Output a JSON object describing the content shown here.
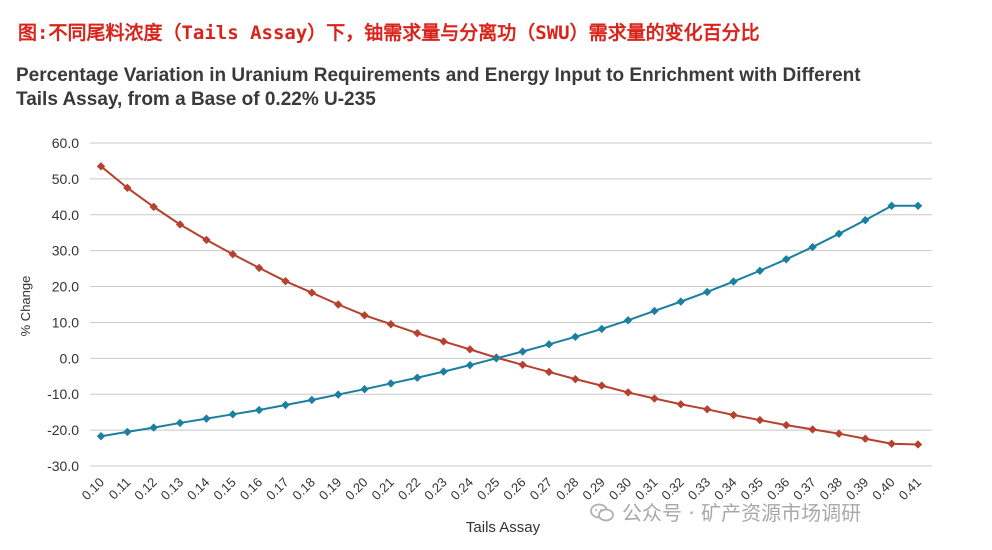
{
  "caption": "图:不同尾料浓度（Tails Assay）下，铀需求量与分离功（SWU）需求量的变化百分比",
  "chart_data": {
    "type": "line",
    "title": "Percentage Variation in Uranium Requirements and Energy Input to Enrichment with Different Tails Assay, from a Base of 0.22% U-235",
    "xlabel": "Tails Assay",
    "ylabel": "% Change",
    "ylim": [
      -30,
      60
    ],
    "yticks": [
      "60.0",
      "50.0",
      "40.0",
      "30.0",
      "20.0",
      "10.0",
      "0.0",
      "-10.0",
      "-20.0",
      "-30.0"
    ],
    "grid": true,
    "categories": [
      "0.10",
      "0.11",
      "0.12",
      "0.13",
      "0.14",
      "0.15",
      "0.16",
      "0.17",
      "0.18",
      "0.19",
      "0.20",
      "0.21",
      "0.22",
      "0.23",
      "0.24",
      "0.25",
      "0.26",
      "0.27",
      "0.28",
      "0.29",
      "0.30",
      "0.31",
      "0.32",
      "0.33",
      "0.34",
      "0.35",
      "0.36",
      "0.37",
      "0.38",
      "0.39",
      "0.40",
      "0.41"
    ],
    "series": [
      {
        "color": "#b5412f",
        "values": [
          53.5,
          47.5,
          42.2,
          37.3,
          33.0,
          29.0,
          25.2,
          21.5,
          18.3,
          15.0,
          12.0,
          9.5,
          7.0,
          4.7,
          2.5,
          0.2,
          -1.8,
          -3.8,
          -5.8,
          -7.6,
          -9.5,
          -11.2,
          -12.8,
          -14.2,
          -15.8,
          -17.2,
          -18.6,
          -19.8,
          -21.0,
          -22.4,
          -23.8,
          -24.0
        ]
      },
      {
        "color": "#1b7fa0",
        "values": [
          -21.7,
          -20.5,
          -19.3,
          -18.0,
          -16.8,
          -15.6,
          -14.4,
          -13.0,
          -11.6,
          -10.1,
          -8.6,
          -7.0,
          -5.4,
          -3.7,
          -1.9,
          0.0,
          1.9,
          3.9,
          6.0,
          8.2,
          10.6,
          13.2,
          15.8,
          18.5,
          21.4,
          24.4,
          27.6,
          31.0,
          34.7,
          38.5,
          42.5,
          42.5
        ]
      }
    ]
  },
  "watermark": {
    "text": "公众号 · 矿产资源市场调研"
  }
}
